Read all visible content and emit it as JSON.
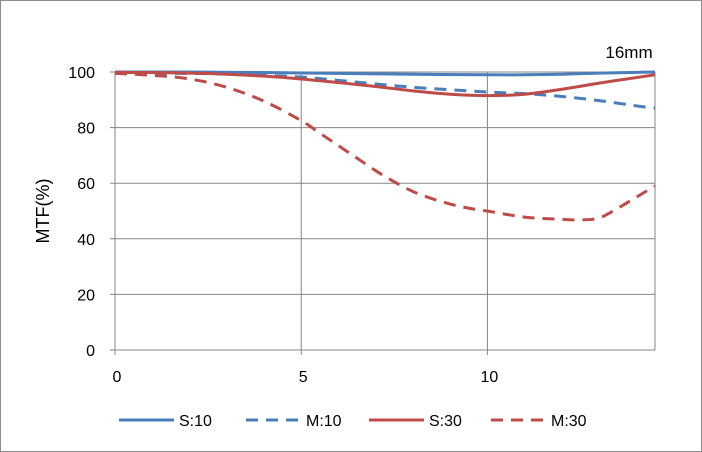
{
  "chart_data": {
    "type": "line",
    "title": "16mm",
    "xlabel": "",
    "ylabel": "MTF(%)",
    "xlim": [
      0,
      14.5
    ],
    "ylim": [
      0,
      100
    ],
    "xticks": [
      0,
      5,
      10
    ],
    "yticks": [
      0,
      20,
      40,
      60,
      80,
      100
    ],
    "grid": true,
    "legend_position": "bottom",
    "series": [
      {
        "name": "S:10",
        "color": "#4a7ebb",
        "dash": "solid",
        "x": [
          0,
          2,
          4,
          6,
          8,
          10,
          11,
          12,
          13,
          14.5
        ],
        "y": [
          100,
          100,
          99.8,
          99.5,
          99.2,
          99,
          99,
          99.2,
          99.6,
          100
        ]
      },
      {
        "name": "M:10",
        "color": "#4a7ebb",
        "dash": "dashed",
        "x": [
          0,
          1,
          2,
          3,
          4,
          5,
          6,
          7,
          8,
          9,
          10,
          11,
          12,
          13,
          14,
          14.5
        ],
        "y": [
          99.5,
          99.5,
          99.5,
          99.3,
          98.8,
          98.2,
          97,
          95.7,
          94.5,
          93.6,
          92.8,
          92.2,
          91.2,
          89.7,
          87.8,
          87
        ]
      },
      {
        "name": "S:30",
        "color": "#be4b48",
        "dash": "solid",
        "x": [
          0,
          1,
          2,
          3,
          4,
          5,
          6,
          7,
          8,
          9,
          10,
          11,
          12,
          13,
          14,
          14.5
        ],
        "y": [
          99.8,
          99.8,
          99.6,
          99.2,
          98.5,
          97.5,
          96.2,
          94.8,
          93.2,
          92,
          91.5,
          92,
          93.8,
          96,
          98,
          99
        ]
      },
      {
        "name": "M:30",
        "color": "#be4b48",
        "dash": "dashed",
        "x": [
          0,
          1,
          2,
          3,
          4,
          5,
          5.5,
          6,
          6.5,
          7,
          7.5,
          8,
          8.5,
          9,
          9.5,
          10,
          10.5,
          11,
          11.5,
          12,
          12.5,
          13,
          13.5,
          14,
          14.5
        ],
        "y": [
          99.5,
          98.8,
          97.5,
          94.5,
          89.5,
          82.5,
          78,
          73.5,
          69,
          64.5,
          60.5,
          57,
          54.5,
          52.5,
          51,
          50,
          48.8,
          47.8,
          47.3,
          47,
          46.8,
          47.5,
          51,
          55,
          59
        ]
      }
    ]
  }
}
